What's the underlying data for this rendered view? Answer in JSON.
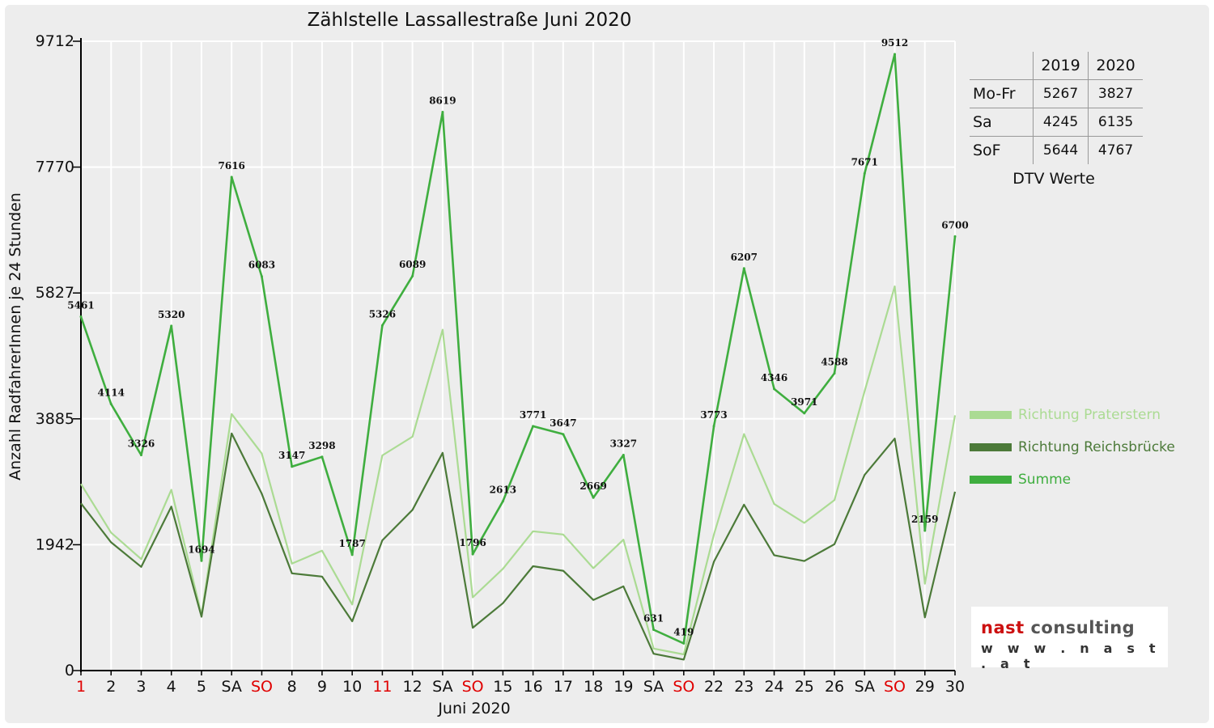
{
  "chart_data": {
    "type": "line",
    "title": "Zählstelle Lassallestraße Juni 2020",
    "xlabel": "Juni 2020",
    "ylabel": "Anzahl RadfahrerInnen je 24 Stunden",
    "ylim": [
      0,
      9712
    ],
    "y_ticks": [
      0,
      1942,
      3885,
      5827,
      7770,
      9712
    ],
    "grid": true,
    "categories": [
      "1",
      "2",
      "3",
      "4",
      "5",
      "SA",
      "SO",
      "8",
      "9",
      "10",
      "11",
      "12",
      "SA",
      "SO",
      "15",
      "16",
      "17",
      "18",
      "19",
      "SA",
      "SO",
      "22",
      "23",
      "24",
      "25",
      "26",
      "SA",
      "SO",
      "29",
      "30"
    ],
    "red_categories": [
      0,
      6,
      10,
      13,
      20,
      27
    ],
    "series": [
      {
        "name": "Richtung Praterstern",
        "color": "#abdb93",
        "values": [
          2880,
          2130,
          1720,
          2790,
          860,
          3960,
          3350,
          1650,
          1850,
          1020,
          3320,
          3610,
          5260,
          1130,
          1570,
          2150,
          2100,
          1580,
          2020,
          340,
          250,
          2100,
          3650,
          2570,
          2280,
          2630,
          4310,
          5930,
          1340,
          3940
        ]
      },
      {
        "name": "Richtung Reichsbrücke",
        "color": "#4c7a39",
        "values": [
          2580,
          1980,
          1600,
          2530,
          830,
          3660,
          2730,
          1500,
          1450,
          760,
          2010,
          2480,
          3360,
          660,
          1040,
          1610,
          1540,
          1090,
          1300,
          260,
          170,
          1680,
          2560,
          1780,
          1690,
          1950,
          3020,
          3580,
          820,
          2760
        ]
      },
      {
        "name": "Summe",
        "color": "#3fae3f",
        "values": [
          5461,
          4114,
          3326,
          5320,
          1694,
          7616,
          6083,
          3147,
          3298,
          1787,
          5326,
          6089,
          8619,
          1796,
          2613,
          3771,
          3647,
          2669,
          3327,
          631,
          419,
          3773,
          6207,
          4346,
          3971,
          4588,
          7671,
          9512,
          2159,
          6700
        ],
        "labels": [
          "5461",
          "4114",
          "3326",
          "5320",
          "1694",
          "7616",
          "6083",
          "3147",
          "3298",
          "1787",
          "5326",
          "6089",
          "8619",
          "1796",
          "2613",
          "3771",
          "3647",
          "2669",
          "3327",
          "631",
          "419",
          "3773",
          "6207",
          "4346",
          "3971",
          "4588",
          "7671",
          "9512",
          "2159",
          "6700"
        ]
      }
    ]
  },
  "dtv_table": {
    "header": [
      "",
      "2019",
      "2020"
    ],
    "rows": [
      {
        "label": "Mo-Fr",
        "v2019": "5267",
        "v2020": "3827"
      },
      {
        "label": "Sa",
        "v2019": "4245",
        "v2020": "6135"
      },
      {
        "label": "SoF",
        "v2019": "5644",
        "v2020": "4767"
      }
    ],
    "caption": "DTV Werte"
  },
  "logo": {
    "brand_accent": "nast",
    "brand_rest": " consulting",
    "url": "w w w . n a s t . a t"
  },
  "colors": {
    "background": "#ededed",
    "grid": "#ffffff",
    "red_label": "#e00000"
  }
}
